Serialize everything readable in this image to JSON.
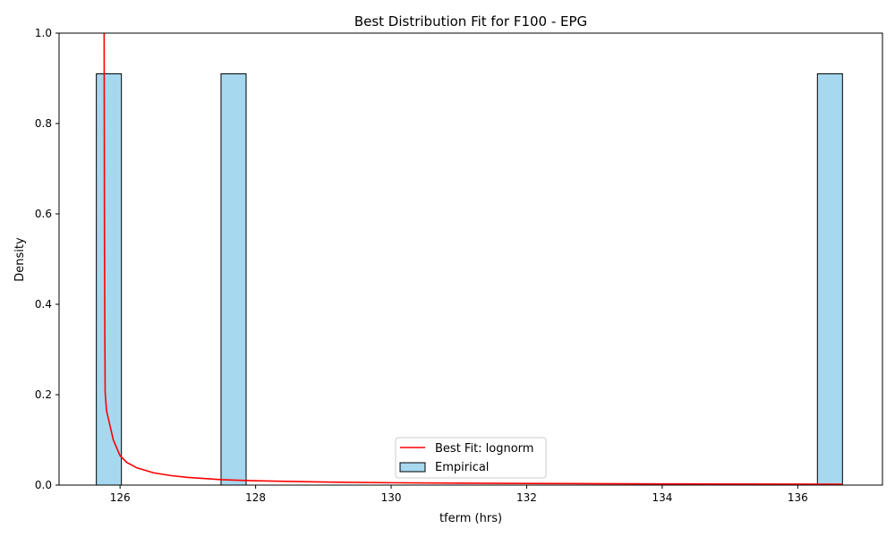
{
  "chart_data": {
    "type": "bar",
    "title": "Best Distribution Fit for F100 - EPG",
    "xlabel": "tferm (hrs)",
    "ylabel": "Density",
    "xlim": [
      125.1,
      137.25
    ],
    "ylim": [
      0,
      1.0
    ],
    "xticks": [
      126,
      128,
      130,
      132,
      134,
      136
    ],
    "yticks": [
      0.0,
      0.2,
      0.4,
      0.6,
      0.8,
      1.0
    ],
    "xtick_labels": [
      "126",
      "128",
      "130",
      "132",
      "134",
      "136"
    ],
    "ytick_labels": [
      "0.0",
      "0.2",
      "0.4",
      "0.6",
      "0.8",
      "1.0"
    ],
    "grid": false,
    "legend": {
      "placement": "lower-center",
      "entries": [
        {
          "label": "Best Fit: lognorm",
          "kind": "line",
          "color": "#ff0000"
        },
        {
          "label": "Empirical",
          "kind": "patch",
          "color": "#a6d8ef",
          "edge": "#000000"
        }
      ]
    },
    "series": [
      {
        "name": "Empirical",
        "kind": "histogram",
        "color": "#a6d8ef",
        "edge_color": "#000000",
        "bins": [
          {
            "x0": 125.65,
            "x1": 126.02,
            "density": 0.91
          },
          {
            "x0": 127.49,
            "x1": 127.86,
            "density": 0.91
          },
          {
            "x0": 136.29,
            "x1": 136.66,
            "density": 0.91
          }
        ]
      },
      {
        "name": "Best Fit: lognorm",
        "kind": "line",
        "color": "#ff0000",
        "x": [
          125.765,
          125.77,
          125.775,
          125.78,
          125.8,
          125.9,
          126.0,
          126.1,
          126.25,
          126.5,
          126.75,
          127.0,
          127.5,
          128.0,
          129.0,
          130.0,
          131.0,
          132.0,
          133.0,
          134.0,
          135.0,
          136.0,
          136.66
        ],
        "y": [
          1.0,
          0.55,
          0.35,
          0.205,
          0.165,
          0.1,
          0.065,
          0.05,
          0.038,
          0.027,
          0.021,
          0.017,
          0.012,
          0.0095,
          0.0068,
          0.0052,
          0.0043,
          0.0036,
          0.0031,
          0.0027,
          0.0024,
          0.0021,
          0.002
        ]
      }
    ]
  }
}
